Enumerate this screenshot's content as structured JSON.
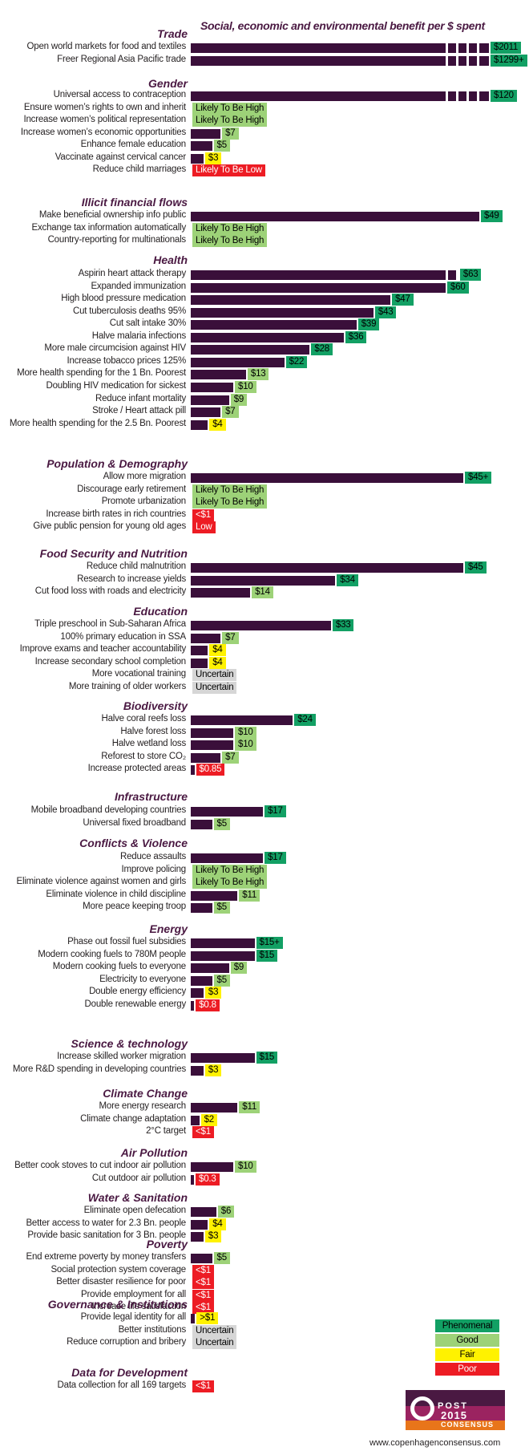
{
  "chart_data": {
    "type": "bar",
    "title": "Social, economic and environmental benefit per $ spent",
    "legend": [
      "Phenomenal",
      "Good",
      "Fair",
      "Poor"
    ],
    "sections": [
      {
        "name": "Trade",
        "rows": [
          {
            "label": "Open world markets for food and textiles",
            "value_label": "$2011",
            "value": 2011,
            "rating": "phen"
          },
          {
            "label": "Freer Regional Asia Pacific trade",
            "value_label": "$1299+",
            "value": 1299,
            "rating": "phen"
          }
        ]
      },
      {
        "name": "Gender",
        "rows": [
          {
            "label": "Universal access to contraception",
            "value_label": "$120",
            "value": 120,
            "rating": "phen"
          },
          {
            "label": "Ensure women’s rights to own and inherit",
            "value_label": "Likely To Be High",
            "value": null,
            "rating": "good"
          },
          {
            "label": "Increase women’s political representation",
            "value_label": "Likely To Be High",
            "value": null,
            "rating": "good"
          },
          {
            "label": "Increase women’s economic opportunities",
            "value_label": "$7",
            "value": 7,
            "rating": "good"
          },
          {
            "label": "Enhance female education",
            "value_label": "$5",
            "value": 5,
            "rating": "good"
          },
          {
            "label": "Vaccinate against cervical cancer",
            "value_label": "$3",
            "value": 3,
            "rating": "fair"
          },
          {
            "label": "Reduce child marriages",
            "value_label": "Likely To Be Low",
            "value": null,
            "rating": "poor"
          }
        ]
      },
      {
        "name": "Illicit financial flows",
        "rows": [
          {
            "label": "Make beneficial ownership info public",
            "value_label": "$49",
            "value": 49,
            "rating": "phen"
          },
          {
            "label": "Exchange tax information automatically",
            "value_label": "Likely To Be High",
            "value": null,
            "rating": "good"
          },
          {
            "label": "Country-reporting  for multinationals",
            "value_label": "Likely To Be High",
            "value": null,
            "rating": "good"
          }
        ]
      },
      {
        "name": "Health",
        "rows": [
          {
            "label": "Aspirin heart attack therapy",
            "value_label": "$63",
            "value": 63,
            "rating": "phen"
          },
          {
            "label": "Expanded immunization",
            "value_label": "$60",
            "value": 60,
            "rating": "phen"
          },
          {
            "label": "High blood pressure medication",
            "value_label": "$47",
            "value": 47,
            "rating": "phen"
          },
          {
            "label": "Cut tuberculosis deaths 95%",
            "value_label": "$43",
            "value": 43,
            "rating": "phen"
          },
          {
            "label": "Cut salt intake 30%",
            "value_label": "$39",
            "value": 39,
            "rating": "phen"
          },
          {
            "label": "Halve malaria infections",
            "value_label": "$36",
            "value": 36,
            "rating": "phen"
          },
          {
            "label": "More male circumcision against HIV",
            "value_label": "$28",
            "value": 28,
            "rating": "phen"
          },
          {
            "label": "Increase tobacco prices 125%",
            "value_label": "$22",
            "value": 22,
            "rating": "phen"
          },
          {
            "label": "More health spending for the 1 Bn. Poorest",
            "value_label": "$13",
            "value": 13,
            "rating": "good"
          },
          {
            "label": "Doubling HIV medication for sickest",
            "value_label": "$10",
            "value": 10,
            "rating": "good"
          },
          {
            "label": "Reduce infant mortality",
            "value_label": "$9",
            "value": 9,
            "rating": "good"
          },
          {
            "label": "Stroke / Heart attack pill",
            "value_label": "$7",
            "value": 7,
            "rating": "good"
          },
          {
            "label": "More health spending for the 2.5 Bn. Poorest",
            "value_label": "$4",
            "value": 4,
            "rating": "fair"
          }
        ]
      },
      {
        "name": "Population & Demography",
        "rows": [
          {
            "label": "Allow more migration",
            "value_label": "$45+",
            "value": 45,
            "rating": "phen"
          },
          {
            "label": "Discourage early retirement",
            "value_label": "Likely To Be High",
            "value": null,
            "rating": "good"
          },
          {
            "label": "Promote urbanization",
            "value_label": "Likely To Be High",
            "value": null,
            "rating": "good"
          },
          {
            "label": "Increase birth rates in rich countries",
            "value_label": "<$1",
            "value": null,
            "rating": "poor"
          },
          {
            "label": "Give public pension for young old ages",
            "value_label": "Low",
            "value": null,
            "rating": "poor"
          }
        ]
      },
      {
        "name": "Food Security and Nutrition",
        "rows": [
          {
            "label": "Reduce child malnutrition",
            "value_label": "$45",
            "value": 45,
            "rating": "phen"
          },
          {
            "label": "Research to increase yields",
            "value_label": "$34",
            "value": 34,
            "rating": "phen"
          },
          {
            "label": "Cut food loss with roads and electricity",
            "value_label": "$14",
            "value": 14,
            "rating": "good"
          }
        ]
      },
      {
        "name": "Education",
        "rows": [
          {
            "label": "Triple preschool in Sub-Saharan  Africa",
            "value_label": "$33",
            "value": 33,
            "rating": "phen"
          },
          {
            "label": "100% primary education in SSA",
            "value_label": "$7",
            "value": 7,
            "rating": "good"
          },
          {
            "label": "Improve exams and teacher accountability",
            "value_label": "$4",
            "value": 4,
            "rating": "fair"
          },
          {
            "label": "Increase secondary school completion",
            "value_label": "$4",
            "value": 4,
            "rating": "fair"
          },
          {
            "label": "More vocational training",
            "value_label": "Uncertain",
            "value": null,
            "rating": "unc"
          },
          {
            "label": "More training of older workers",
            "value_label": "Uncertain",
            "value": null,
            "rating": "unc"
          }
        ]
      },
      {
        "name": "Biodiversity",
        "rows": [
          {
            "label": "Halve coral reefs loss",
            "value_label": "$24",
            "value": 24,
            "rating": "phen"
          },
          {
            "label": "Halve forest loss",
            "value_label": "$10",
            "value": 10,
            "rating": "good"
          },
          {
            "label": "Halve wetland loss",
            "value_label": "$10",
            "value": 10,
            "rating": "good"
          },
          {
            "label": "Reforest to store CO₂",
            "value_label": "$7",
            "value": 7,
            "rating": "good"
          },
          {
            "label": "Increase protected areas",
            "value_label": "$0.85",
            "value": 0.85,
            "rating": "poor"
          }
        ]
      },
      {
        "name": "Infrastructure",
        "rows": [
          {
            "label": "Mobile broadband  developing countries",
            "value_label": "$17",
            "value": 17,
            "rating": "phen"
          },
          {
            "label": "Universal fixed broadband",
            "value_label": "$5",
            "value": 5,
            "rating": "good"
          }
        ]
      },
      {
        "name": "Conflicts & Violence",
        "rows": [
          {
            "label": "Reduce assaults",
            "value_label": "$17",
            "value": 17,
            "rating": "phen"
          },
          {
            "label": "Improve policing",
            "value_label": "Likely To Be High",
            "value": null,
            "rating": "good"
          },
          {
            "label": "Eliminate violence against women and girls",
            "value_label": "Likely To Be High",
            "value": null,
            "rating": "good"
          },
          {
            "label": "Eliminate violence in child discipline",
            "value_label": "$11",
            "value": 11,
            "rating": "good"
          },
          {
            "label": "More peace keeping troop",
            "value_label": "$5",
            "value": 5,
            "rating": "good"
          }
        ]
      },
      {
        "name": "Energy",
        "rows": [
          {
            "label": "Phase out fossil fuel subsidies",
            "value_label": "$15+",
            "value": 15,
            "rating": "phen"
          },
          {
            "label": "Modern cooking fuels to 780M people",
            "value_label": "$15",
            "value": 15,
            "rating": "phen"
          },
          {
            "label": "Modern cooking fuels to everyone",
            "value_label": "$9",
            "value": 9,
            "rating": "good"
          },
          {
            "label": "Electricity to everyone",
            "value_label": "$5",
            "value": 5,
            "rating": "good"
          },
          {
            "label": "Double energy efficiency",
            "value_label": "$3",
            "value": 3,
            "rating": "fair"
          },
          {
            "label": "Double renewable energy",
            "value_label": "$0.8",
            "value": 0.8,
            "rating": "poor"
          }
        ]
      },
      {
        "name": "Science & technology",
        "rows": [
          {
            "label": "Increase skilled worker migration",
            "value_label": "$15",
            "value": 15,
            "rating": "phen"
          },
          {
            "label": "More R&D spending in developing countries",
            "value_label": "$3",
            "value": 3,
            "rating": "fair"
          }
        ]
      },
      {
        "name": "Climate Change",
        "rows": [
          {
            "label": "More energy research",
            "value_label": "$11",
            "value": 11,
            "rating": "good"
          },
          {
            "label": "Climate change adaptation",
            "value_label": "$2",
            "value": 2,
            "rating": "fair"
          },
          {
            "label": "2°C target",
            "value_label": "<$1",
            "value": null,
            "rating": "poor"
          }
        ]
      },
      {
        "name": "Air Pollution",
        "rows": [
          {
            "label": "Better cook stoves to cut indoor air pollution",
            "value_label": "$10",
            "value": 10,
            "rating": "good"
          },
          {
            "label": "Cut outdoor  air pollution",
            "value_label": "$0.3",
            "value": 0.3,
            "rating": "poor"
          }
        ]
      },
      {
        "name": "Water & Sanitation",
        "rows": [
          {
            "label": "Eliminate open defecation",
            "value_label": "$6",
            "value": 6,
            "rating": "good"
          },
          {
            "label": "Better access to water for 2.3 Bn. people",
            "value_label": "$4",
            "value": 4,
            "rating": "fair"
          },
          {
            "label": "Provide basic sanitation for 3 Bn. people",
            "value_label": "$3",
            "value": 3,
            "rating": "fair"
          }
        ]
      },
      {
        "name": "Poverty",
        "rows": [
          {
            "label": "End extreme poverty by money transfers",
            "value_label": "$5",
            "value": 5,
            "rating": "good"
          },
          {
            "label": "Social protection  system coverage",
            "value_label": "<$1",
            "value": null,
            "rating": "poor"
          },
          {
            "label": "Better disaster resilience for poor",
            "value_label": "<$1",
            "value": null,
            "rating": "poor"
          },
          {
            "label": "Provide employment for all",
            "value_label": "<$1",
            "value": null,
            "rating": "poor"
          },
          {
            "label": "Increase life satisfaction",
            "value_label": "<$1",
            "value": null,
            "rating": "poor"
          }
        ]
      },
      {
        "name": "Governance & Institutions",
        "rows": [
          {
            "label": "Provide legal identity for all",
            "value_label": ">$1",
            "value": 1,
            "rating": "fair"
          },
          {
            "label": "Better institutions",
            "value_label": "Uncertain",
            "value": null,
            "rating": "unc"
          },
          {
            "label": "Reduce corruption  and bribery",
            "value_label": "Uncertain",
            "value": null,
            "rating": "unc"
          }
        ]
      },
      {
        "name": "Data for Development",
        "rows": [
          {
            "label": "Data collection for all 169 targets",
            "value_label": "<$1",
            "value": null,
            "rating": "poor"
          }
        ]
      }
    ]
  },
  "logo": {
    "post": "POST",
    "year": "2015",
    "consensus": "CONSENSUS"
  },
  "website": "www.copenhagenconsensus.com",
  "colors": {
    "phenomenal": "#12a064",
    "good": "#9dd278",
    "fair": "#fff200",
    "poor": "#ed1c24",
    "uncertain": "#d6d6d6",
    "bar": "#3a0f3a",
    "heading": "#4a1942"
  }
}
